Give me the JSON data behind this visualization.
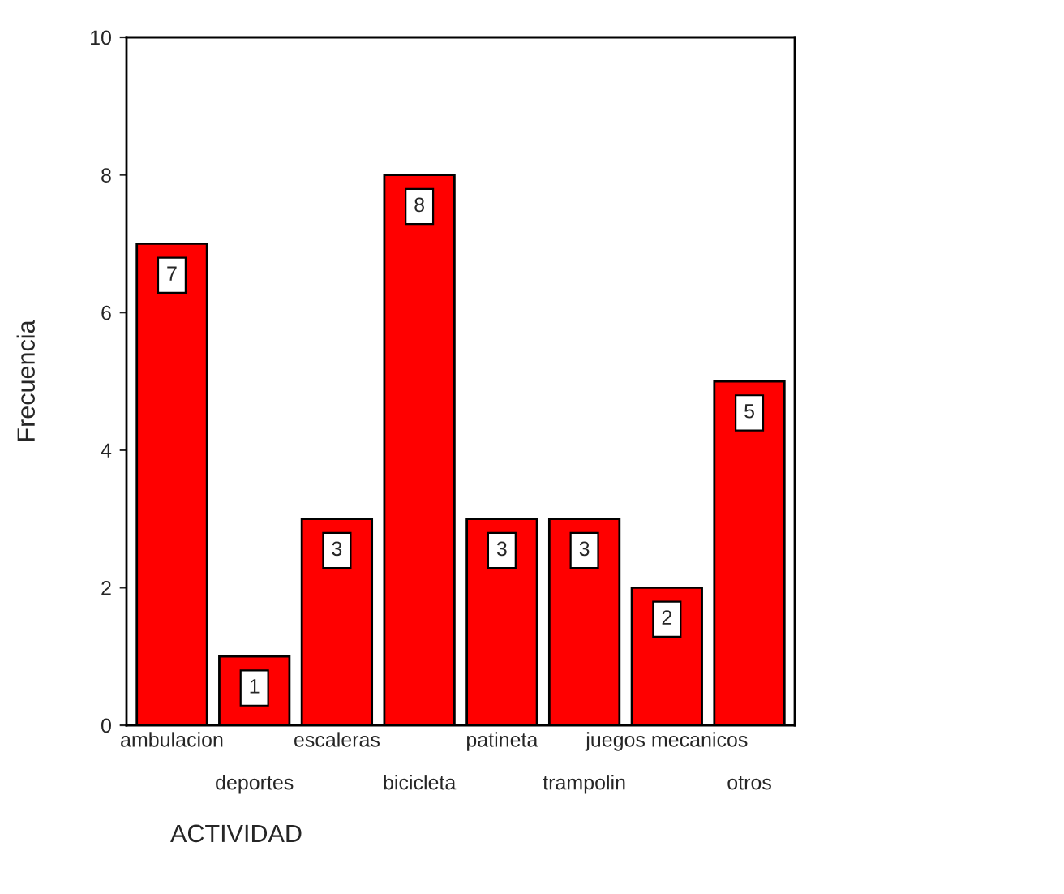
{
  "chart_data": {
    "type": "bar",
    "xlabel": "ACTIVIDAD",
    "ylabel": "Frecuencia",
    "categories": [
      "ambulacion",
      "deportes",
      "escaleras",
      "bicicleta",
      "patineta",
      "trampolin",
      "juegos mecanicos",
      "otros"
    ],
    "values": [
      7,
      1,
      3,
      8,
      3,
      3,
      2,
      5
    ],
    "color": "#ff0000",
    "ylim": [
      0,
      10
    ],
    "yticks": [
      0,
      2,
      4,
      6,
      8,
      10
    ],
    "data_labels": true,
    "grid": false,
    "legend": false
  }
}
